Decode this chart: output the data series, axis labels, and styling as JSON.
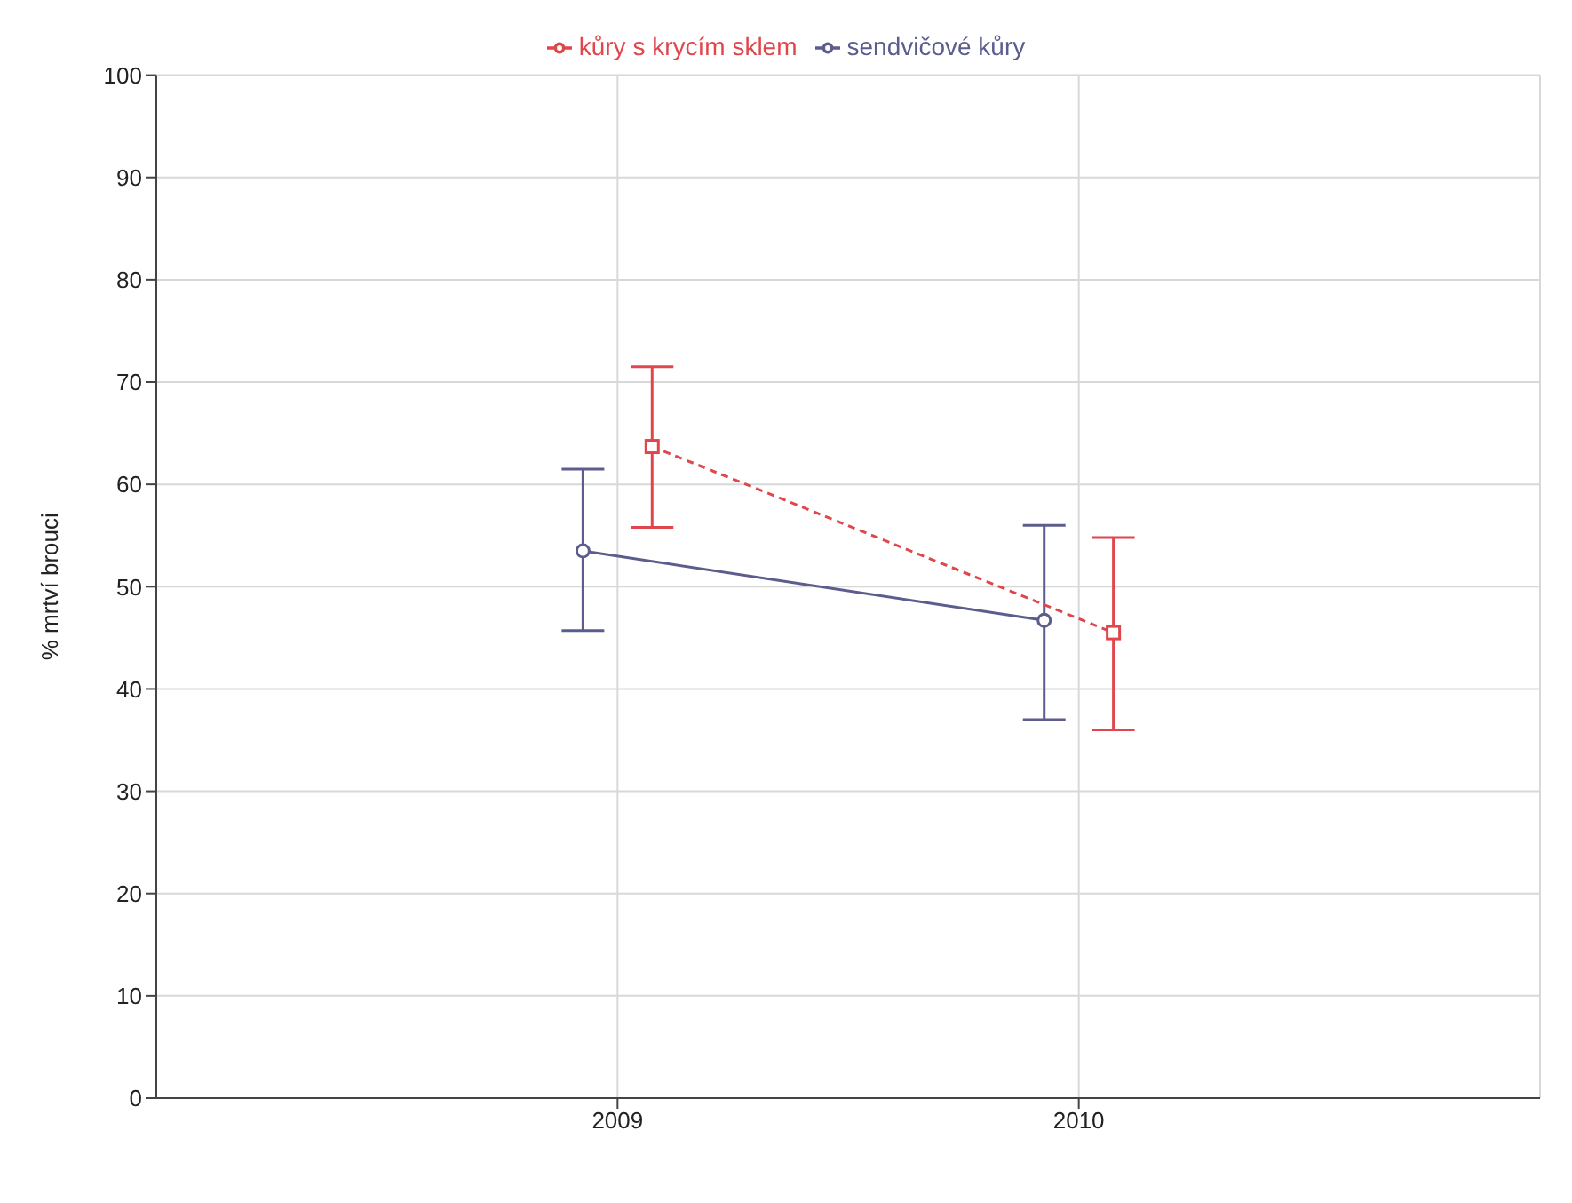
{
  "chart_data": {
    "type": "line",
    "categories": [
      "2009",
      "2010"
    ],
    "ylabel": "% mrtví brouci",
    "ylim": [
      0,
      100
    ],
    "yticks": [
      0,
      10,
      20,
      30,
      40,
      50,
      60,
      70,
      80,
      90,
      100
    ],
    "grid": true,
    "legend": "top",
    "series": [
      {
        "name": "sendvičové kůry",
        "color": "#5c5c8e",
        "values": [
          53.5,
          46.7
        ],
        "errors": [
          [
            45.7,
            61.5
          ],
          [
            37,
            56
          ]
        ],
        "marker": "circle",
        "line_style": "solid"
      },
      {
        "name": "kůry s krycím sklem",
        "color": "#e0474c",
        "values": [
          63.7,
          45.5
        ],
        "errors": [
          [
            55.8,
            71.5
          ],
          [
            36,
            54.8
          ]
        ],
        "marker": "square",
        "line_style": "dashed"
      }
    ]
  }
}
